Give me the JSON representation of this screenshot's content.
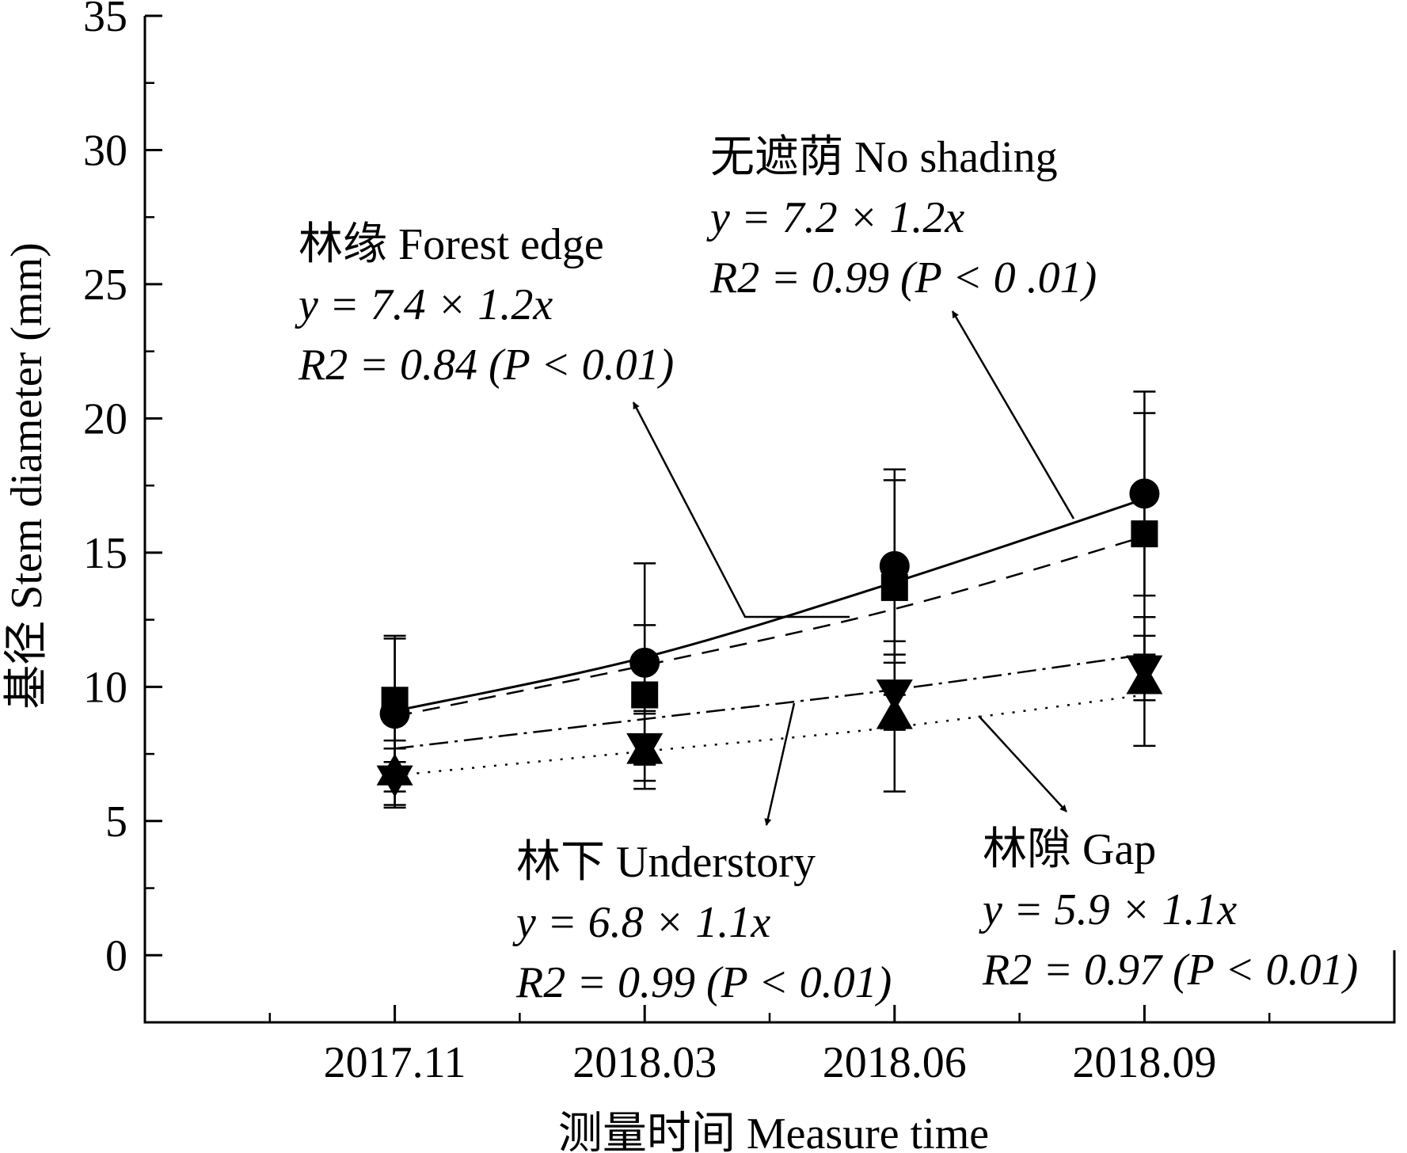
{
  "chart_data": {
    "type": "scatter",
    "title": "",
    "xlabel": "测量时间 Measure time",
    "ylabel": "基径 Stem diameter (mm)",
    "x_categories": [
      "2017.11",
      "2018.03",
      "2018.06",
      "2018.09"
    ],
    "ylim": [
      -2.5,
      35
    ],
    "yticks": [
      0,
      5,
      10,
      15,
      20,
      25,
      30,
      35
    ],
    "grid": false,
    "series": [
      {
        "name": "无遮荫 No shading",
        "marker": "circle",
        "line": "solid",
        "values": [
          9.0,
          10.9,
          14.5,
          17.2
        ],
        "errors": [
          2.9,
          3.7,
          3.6,
          3.8
        ],
        "equation": "y = 7.2 × 1.2x",
        "r2": "R2 = 0.99 (P < 0 .01)",
        "fit_values": [
          9.1,
          11.1,
          13.9,
          17.0
        ]
      },
      {
        "name": "林缘 Forest edge",
        "marker": "square",
        "line": "dashed",
        "values": [
          9.5,
          9.7,
          13.7,
          15.7
        ],
        "errors": [
          2.3,
          2.6,
          4.0,
          4.5
        ],
        "equation": "y = 7.4 × 1.2x",
        "r2": "R2 = 0.84 (P < 0.01)",
        "fit_values": [
          8.9,
          10.8,
          12.9,
          15.6
        ]
      },
      {
        "name": "林下 Understory",
        "marker": "triangle-down",
        "line": "dashdot",
        "values": [
          6.6,
          7.8,
          9.8,
          10.7
        ],
        "errors": [
          1.1,
          1.3,
          1.4,
          1.2
        ],
        "equation": "y = 6.8 × 1.1x",
        "r2": "R2 = 0.99 (P < 0.01)",
        "fit_values": [
          7.7,
          8.8,
          9.9,
          11.2
        ]
      },
      {
        "name": "林隙 Gap",
        "marker": "triangle-up",
        "line": "dotted",
        "values": [
          6.8,
          7.6,
          8.9,
          10.2
        ],
        "errors": [
          1.2,
          1.4,
          2.8,
          2.4
        ],
        "equation": "y = 5.9 × 1.1x",
        "r2": "R2 = 0.97 (P < 0.01)",
        "fit_values": [
          6.7,
          7.6,
          8.5,
          9.7
        ]
      }
    ]
  }
}
